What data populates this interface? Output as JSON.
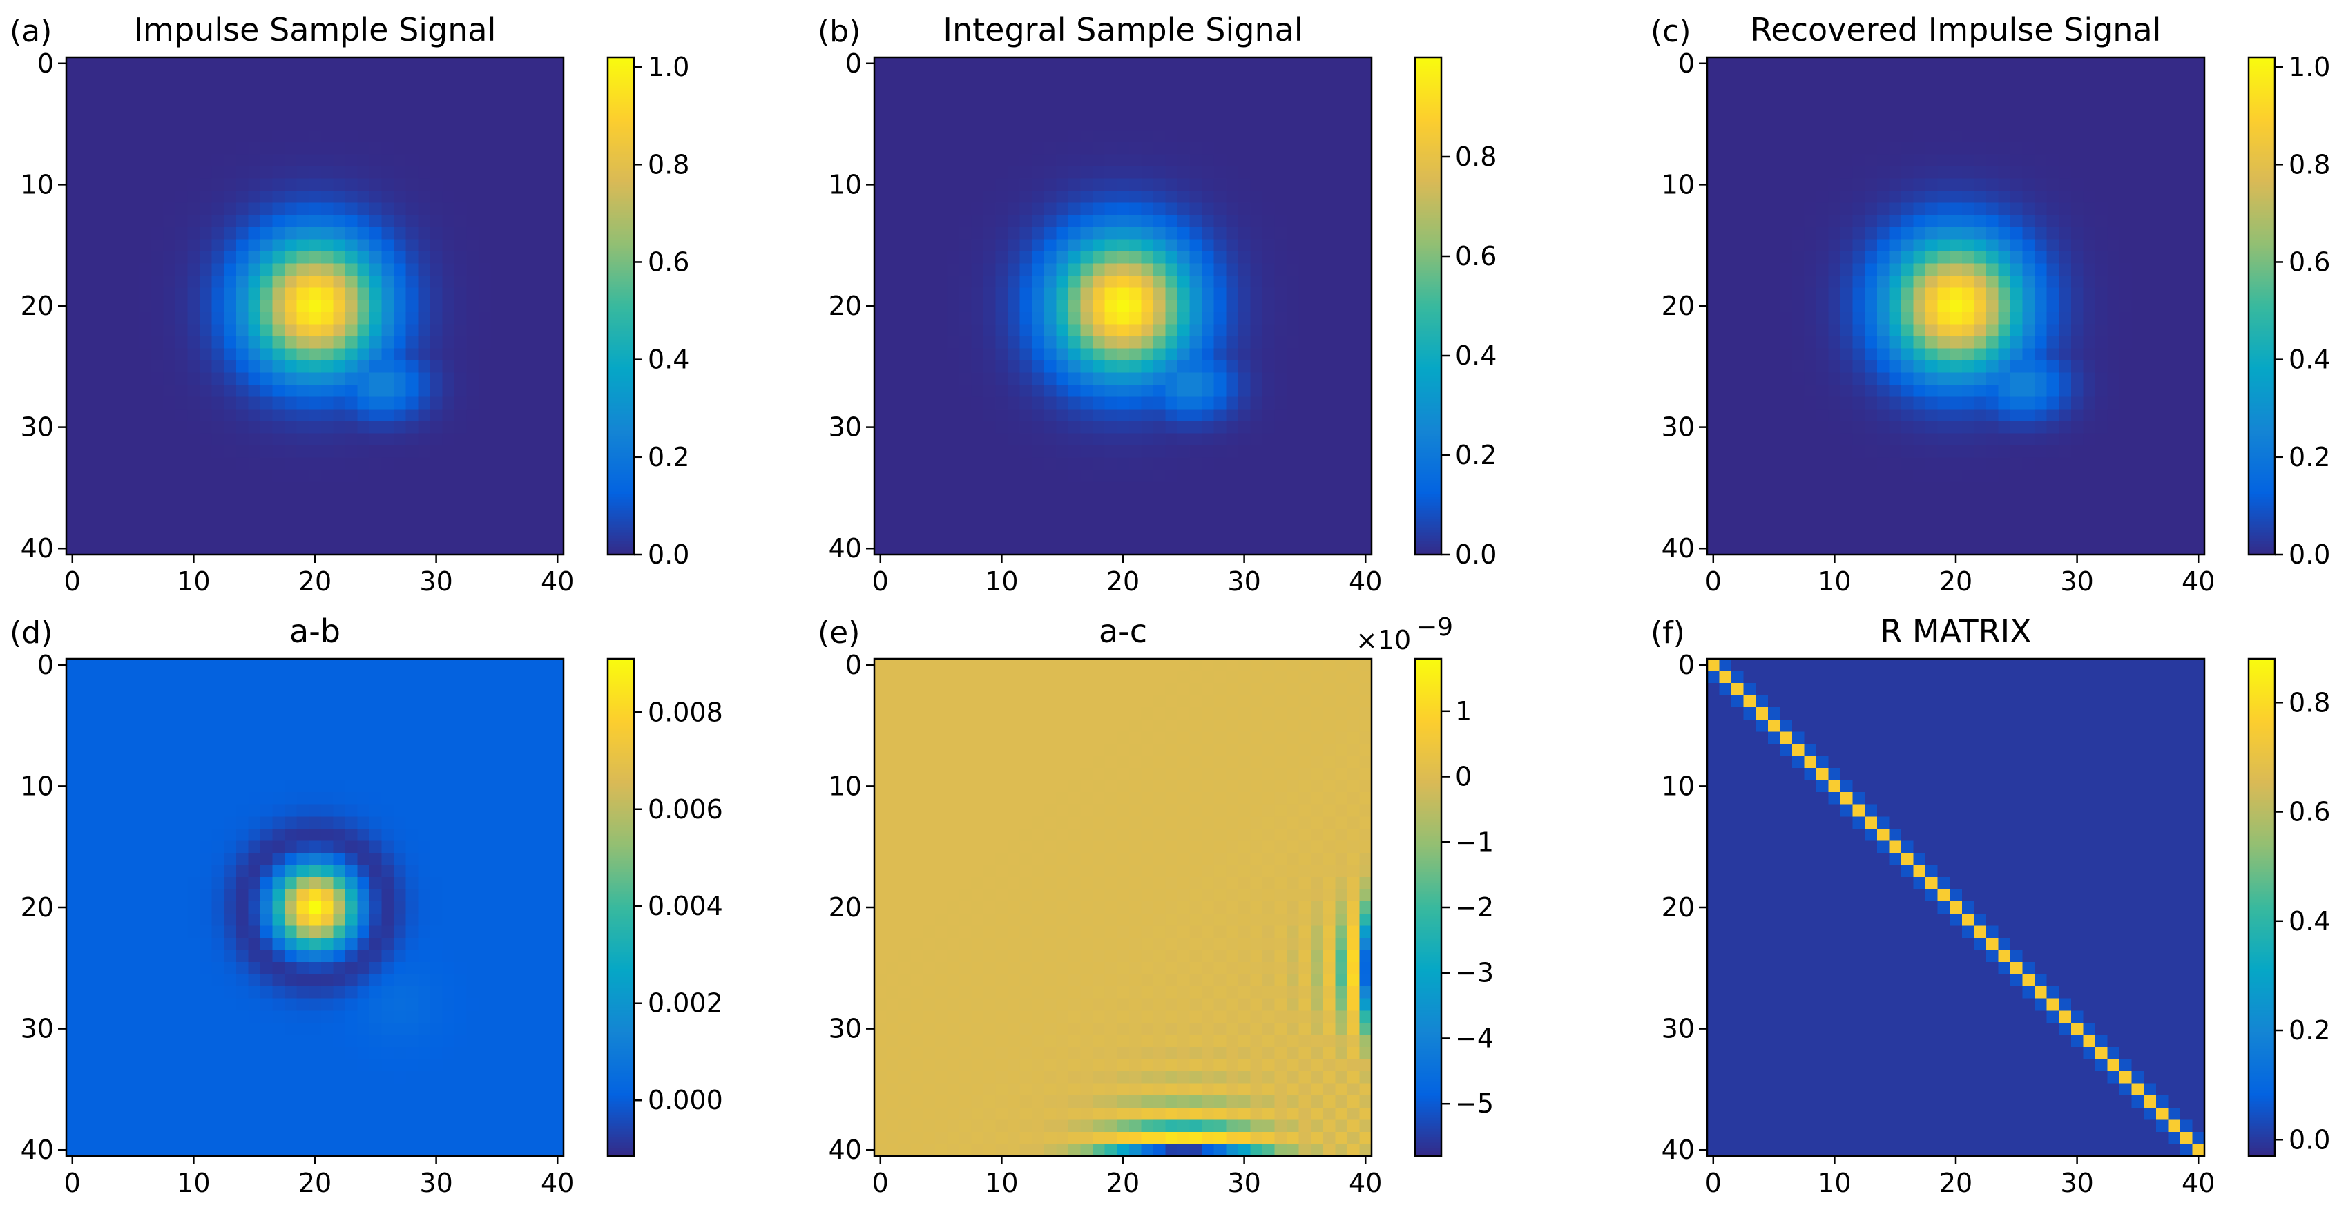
{
  "figure": {
    "colormap_stops": [
      "#352a87",
      "#0363e1",
      "#1485d4",
      "#06a7c6",
      "#38b99e",
      "#92bf73",
      "#d9ba56",
      "#fcce2e",
      "#f9fb0e"
    ]
  },
  "chart_data": [
    {
      "type": "heatmap",
      "panel_label": "(a)",
      "title": "Impulse Sample Signal",
      "xlabel": "",
      "ylabel": "",
      "grid_size": [
        41,
        41
      ],
      "x_ticks": [
        "0",
        "10",
        "20",
        "30",
        "40"
      ],
      "y_ticks": [
        "0",
        "10",
        "20",
        "30",
        "40"
      ],
      "tick_values": [
        0,
        10,
        20,
        30,
        40
      ],
      "y_inverted": true,
      "pattern": {
        "kind": "blob",
        "center": [
          20,
          20
        ],
        "sigma": 3.8,
        "tail": true,
        "tail_gain": 0.25
      },
      "clim": [
        0,
        1.02
      ],
      "value_range": [
        0,
        1.0
      ],
      "bg_value": 0,
      "colorbar": {
        "ticks": [
          "0.0",
          "0.2",
          "0.4",
          "0.6",
          "0.8",
          "1.0"
        ],
        "tick_values": [
          0,
          0.2,
          0.4,
          0.6,
          0.8,
          1.0
        ],
        "multiplier": ""
      }
    },
    {
      "type": "heatmap",
      "panel_label": "(b)",
      "title": "Integral Sample Signal",
      "xlabel": "",
      "ylabel": "",
      "grid_size": [
        41,
        41
      ],
      "x_ticks": [
        "0",
        "10",
        "20",
        "30",
        "40"
      ],
      "y_ticks": [
        "0",
        "10",
        "20",
        "30",
        "40"
      ],
      "tick_values": [
        0,
        10,
        20,
        30,
        40
      ],
      "y_inverted": true,
      "pattern": {
        "kind": "blob",
        "center": [
          20,
          20
        ],
        "sigma": 3.9,
        "tail": true,
        "tail_gain": 0.25
      },
      "clim": [
        0,
        1.0
      ],
      "value_range": [
        0,
        0.99
      ],
      "bg_value": 0,
      "colorbar": {
        "ticks": [
          "0.0",
          "0.2",
          "0.4",
          "0.6",
          "0.8"
        ],
        "tick_values": [
          0,
          0.2,
          0.4,
          0.6,
          0.8
        ],
        "multiplier": ""
      }
    },
    {
      "type": "heatmap",
      "panel_label": "(c)",
      "title": "Recovered Impulse Signal",
      "xlabel": "",
      "ylabel": "",
      "grid_size": [
        41,
        41
      ],
      "x_ticks": [
        "0",
        "10",
        "20",
        "30",
        "40"
      ],
      "y_ticks": [
        "0",
        "10",
        "20",
        "30",
        "40"
      ],
      "tick_values": [
        0,
        10,
        20,
        30,
        40
      ],
      "y_inverted": true,
      "pattern": {
        "kind": "blob",
        "center": [
          20,
          20
        ],
        "sigma": 3.8,
        "tail": true,
        "tail_gain": 0.25
      },
      "clim": [
        0,
        1.02
      ],
      "value_range": [
        0,
        1.0
      ],
      "bg_value": 0,
      "colorbar": {
        "ticks": [
          "0.0",
          "0.2",
          "0.4",
          "0.6",
          "0.8",
          "1.0"
        ],
        "tick_values": [
          0,
          0.2,
          0.4,
          0.6,
          0.8,
          1.0
        ],
        "multiplier": ""
      }
    },
    {
      "type": "heatmap",
      "panel_label": "(d)",
      "title": "a-b",
      "xlabel": "",
      "ylabel": "",
      "grid_size": [
        41,
        41
      ],
      "x_ticks": [
        "0",
        "10",
        "20",
        "30",
        "40"
      ],
      "y_ticks": [
        "0",
        "10",
        "20",
        "30",
        "40"
      ],
      "tick_values": [
        0,
        10,
        20,
        30,
        40
      ],
      "y_inverted": true,
      "pattern": {
        "kind": "ring",
        "center": [
          20,
          20
        ],
        "core_peak": 0.009,
        "core_sigma": 2.2,
        "ring_radius": 5.5,
        "ring_width": 1.4,
        "ring_depth": -0.0013,
        "bump_center": [
          27,
          28
        ],
        "bump_value": 0.0004
      },
      "clim": [
        -0.00115,
        0.0091
      ],
      "value_range": [
        -0.0011,
        0.009
      ],
      "bg_value": 0.0001,
      "colorbar": {
        "ticks": [
          "0.000",
          "0.002",
          "0.004",
          "0.006",
          "0.008"
        ],
        "tick_values": [
          0,
          0.002,
          0.004,
          0.006,
          0.008
        ],
        "multiplier": ""
      }
    },
    {
      "type": "heatmap",
      "panel_label": "(e)",
      "title": "a-c",
      "xlabel": "",
      "ylabel": "",
      "grid_size": [
        41,
        41
      ],
      "x_ticks": [
        "0",
        "10",
        "20",
        "30",
        "40"
      ],
      "y_ticks": [
        "0",
        "10",
        "20",
        "30",
        "40"
      ],
      "tick_values": [
        0,
        10,
        20,
        30,
        40
      ],
      "y_inverted": true,
      "pattern": {
        "kind": "edge_ripple",
        "bottom_center": 25,
        "right_center": 25
      },
      "clim": [
        -5.8,
        1.8
      ],
      "value_range": [
        -5.8,
        1.7
      ],
      "bg_value": 0,
      "colorbar": {
        "ticks": [
          "−5",
          "−4",
          "−3",
          "−2",
          "−1",
          "0",
          "1"
        ],
        "tick_values": [
          -5,
          -4,
          -3,
          -2,
          -1,
          0,
          1
        ],
        "multiplier": "×10",
        "multiplier_exp": "−9"
      }
    },
    {
      "type": "heatmap",
      "panel_label": "(f)",
      "title": "R MATRIX",
      "xlabel": "",
      "ylabel": "",
      "grid_size": [
        41,
        41
      ],
      "x_ticks": [
        "0",
        "10",
        "20",
        "30",
        "40"
      ],
      "y_ticks": [
        "0",
        "10",
        "20",
        "30",
        "40"
      ],
      "tick_values": [
        0,
        10,
        20,
        30,
        40
      ],
      "y_inverted": true,
      "pattern": {
        "kind": "diagonal",
        "diag_value": 0.87,
        "off_diag_value": 0.06
      },
      "clim": [
        -0.03,
        0.88
      ],
      "value_range": [
        0,
        0.87
      ],
      "bg_value": 0,
      "colorbar": {
        "ticks": [
          "0.0",
          "0.2",
          "0.4",
          "0.6",
          "0.8"
        ],
        "tick_values": [
          0,
          0.2,
          0.4,
          0.6,
          0.8
        ],
        "multiplier": ""
      }
    }
  ]
}
